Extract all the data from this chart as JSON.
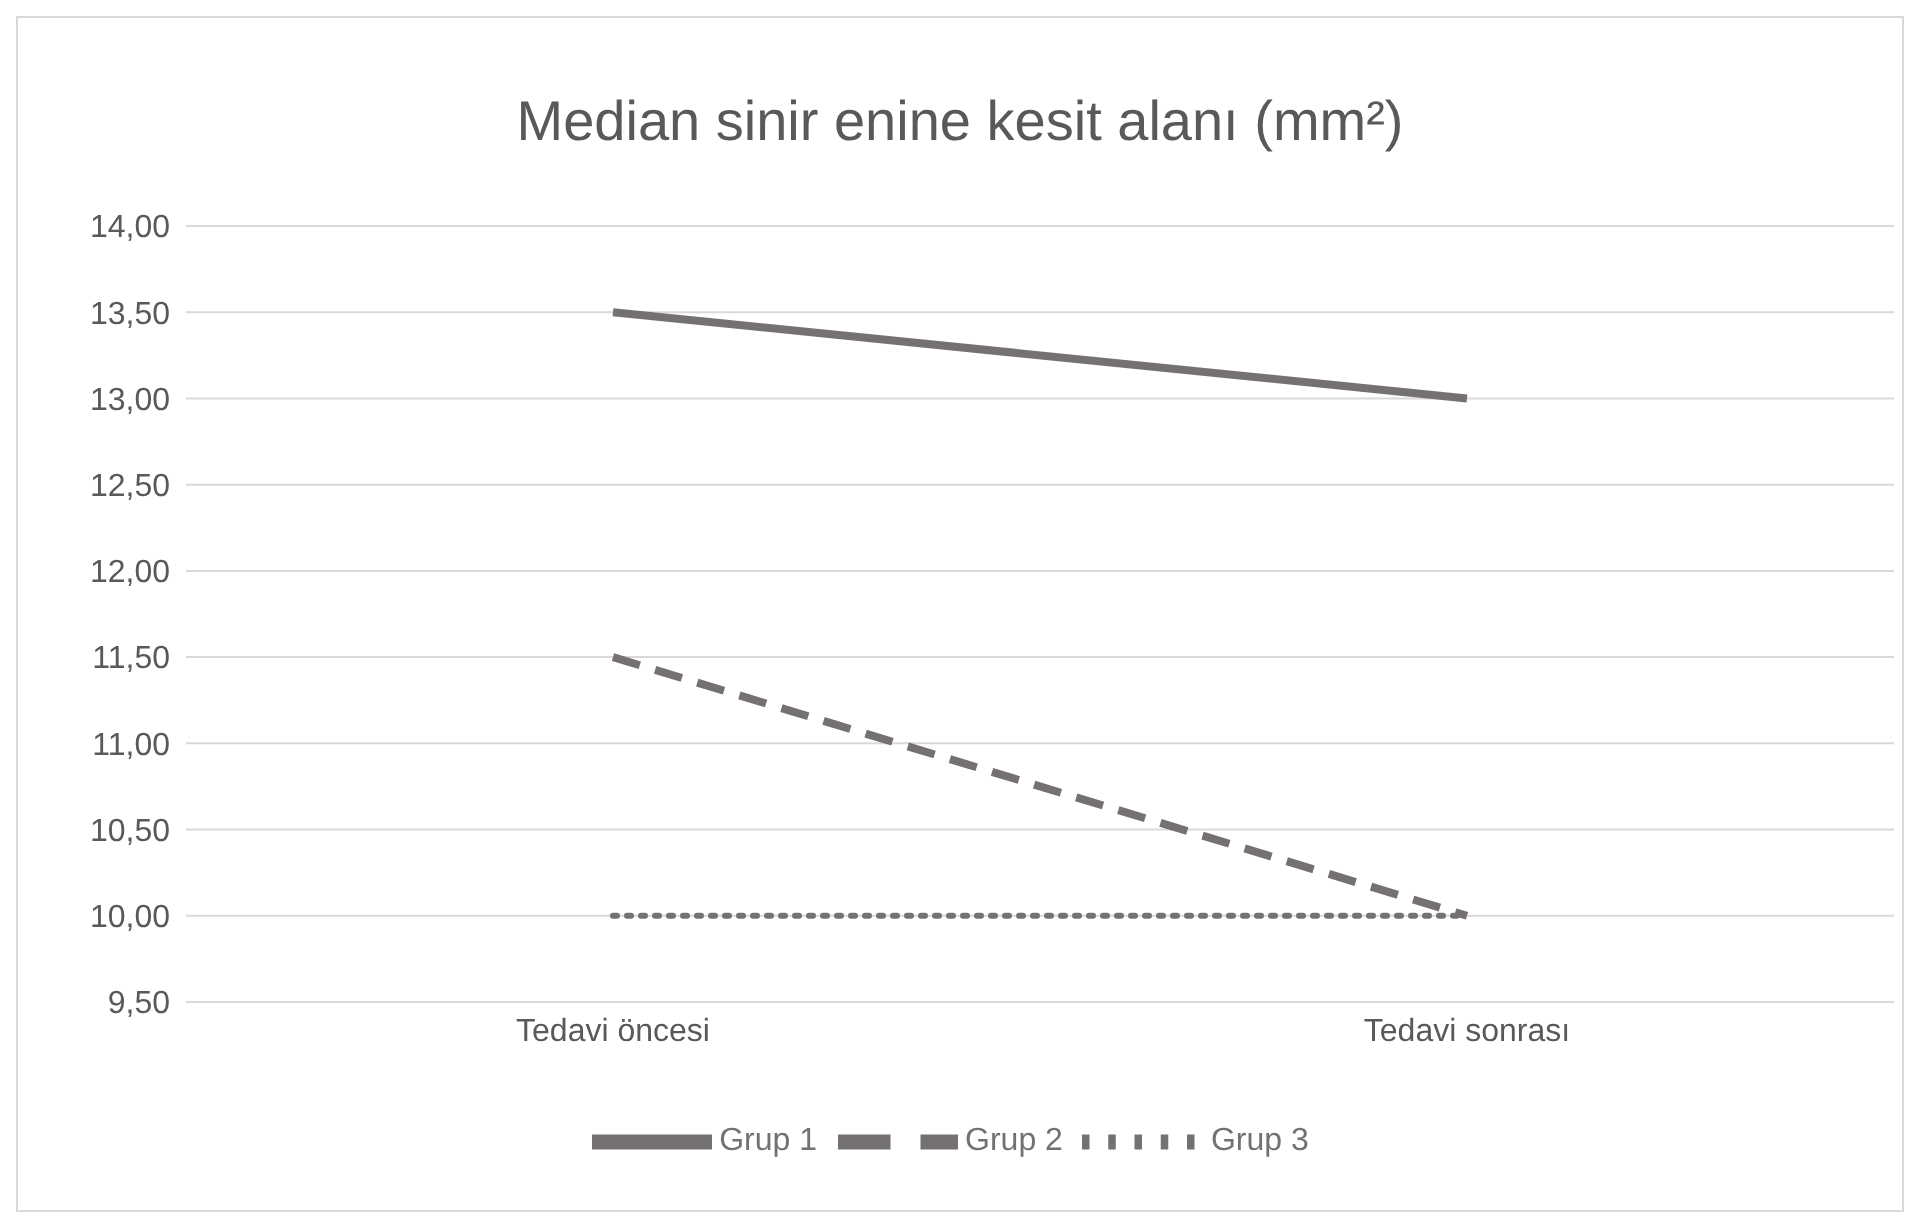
{
  "chart_data": {
    "type": "line",
    "title": "Median sinir enine kesit alanı (mm²)",
    "categories": [
      "Tedavi öncesi",
      "Tedavi sonrası"
    ],
    "series": [
      {
        "name": "Grup 1",
        "color": "#767171",
        "values": [
          13.5,
          13.0
        ],
        "line_style": "solid"
      },
      {
        "name": "Grup 2",
        "color": "#767171",
        "values": [
          11.5,
          10.0
        ],
        "line_style": "dashed"
      },
      {
        "name": "Grup 3",
        "color": "#767171",
        "values": [
          10.0,
          10.0
        ],
        "line_style": "dotted"
      }
    ],
    "ylim": [
      9.5,
      14
    ],
    "yticks": [
      {
        "value": 9.5,
        "label": "9,50"
      },
      {
        "value": 10,
        "label": "10,00"
      },
      {
        "value": 10.5,
        "label": "10,50"
      },
      {
        "value": 11,
        "label": "11,00"
      },
      {
        "value": 11.5,
        "label": "11,50"
      },
      {
        "value": 12,
        "label": "12,00"
      },
      {
        "value": 12.5,
        "label": "12,50"
      },
      {
        "value": 13,
        "label": "13,00"
      },
      {
        "value": 13.5,
        "label": "13,50"
      },
      {
        "value": 14,
        "label": "14,00"
      }
    ],
    "grid": "y",
    "legend": "bottom"
  }
}
